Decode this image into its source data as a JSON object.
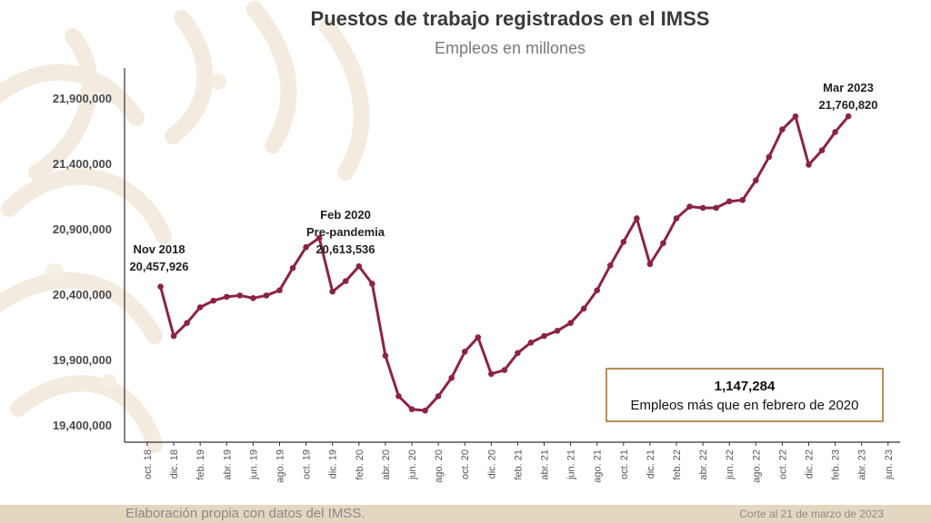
{
  "header": {
    "title": "Puestos de trabajo registrados en el IMSS",
    "subtitle": "Empleos en millones"
  },
  "callout": {
    "value": "1,147,284",
    "text": "Empleos más que en febrero de 2020"
  },
  "footer": {
    "source": "Elaboración propia con datos del IMSS.",
    "cutoff": "Corte al 21 de marzo de 2023"
  },
  "colors": {
    "line": "#8b2346",
    "axis": "#333333",
    "callout_border": "#b5915a",
    "footer_band": "#e4d7bf"
  },
  "chart_data": {
    "type": "line",
    "title": "Puestos de trabajo registrados en el IMSS",
    "subtitle": "Empleos en millones",
    "xlabel": "",
    "ylabel": "",
    "ylim": [
      19300000,
      22150000
    ],
    "grid": false,
    "y_ticks": [
      19400000,
      19900000,
      20400000,
      20900000,
      21400000,
      21900000
    ],
    "y_tick_labels": [
      "19,400,000",
      "19,900,000",
      "20,400,000",
      "20,900,000",
      "21,400,000",
      "21,900,000"
    ],
    "x_tick_labels": [
      "oct. 18",
      "dic. 18",
      "feb. 19",
      "abr. 19",
      "jun. 19",
      "ago. 19",
      "oct. 19",
      "dic. 19",
      "feb. 20",
      "abr. 20",
      "jun. 20",
      "ago. 20",
      "oct. 20",
      "dic. 20",
      "feb. 21",
      "abr. 21",
      "jun. 21",
      "ago. 21",
      "oct. 21",
      "dic. 21",
      "feb. 22",
      "abr. 22",
      "jun. 22",
      "ago. 22",
      "oct. 22",
      "dic. 22",
      "feb. 23",
      "abr. 23",
      "jun. 23"
    ],
    "categories": [
      "nov. 18",
      "dic. 18",
      "ene. 19",
      "feb. 19",
      "mar. 19",
      "abr. 19",
      "may. 19",
      "jun. 19",
      "jul. 19",
      "ago. 19",
      "sep. 19",
      "oct. 19",
      "nov. 19",
      "dic. 19",
      "ene. 20",
      "feb. 20",
      "mar. 20",
      "abr. 20",
      "may. 20",
      "jun. 20",
      "jul. 20",
      "ago. 20",
      "sep. 20",
      "oct. 20",
      "nov. 20",
      "dic. 20",
      "ene. 21",
      "feb. 21",
      "mar. 21",
      "abr. 21",
      "may. 21",
      "jun. 21",
      "jul. 21",
      "ago. 21",
      "sep. 21",
      "oct. 21",
      "nov. 21",
      "dic. 21",
      "ene. 22",
      "feb. 22",
      "mar. 22",
      "abr. 22",
      "may. 22",
      "jun. 22",
      "jul. 22",
      "ago. 22",
      "sep. 22",
      "oct. 22",
      "nov. 22",
      "dic. 22",
      "ene. 23",
      "feb. 23",
      "mar. 23"
    ],
    "values": [
      20457926,
      20080000,
      20180000,
      20300000,
      20350000,
      20380000,
      20390000,
      20370000,
      20390000,
      20430000,
      20600000,
      20760000,
      20830000,
      20420000,
      20500000,
      20613536,
      20480000,
      19930000,
      19620000,
      19520000,
      19510000,
      19620000,
      19760000,
      19960000,
      20070000,
      19790000,
      19820000,
      19950000,
      20030000,
      20080000,
      20120000,
      20180000,
      20290000,
      20430000,
      20620000,
      20800000,
      20980000,
      20630000,
      20790000,
      20980000,
      21070000,
      21060000,
      21060000,
      21110000,
      21120000,
      21270000,
      21450000,
      21660000,
      21760000,
      21390000,
      21500000,
      21640000,
      21760820
    ],
    "annotations": [
      {
        "index": 0,
        "lines": [
          "Nov 2018",
          "20,457,926"
        ]
      },
      {
        "index": 12,
        "lines": [
          "Feb 2020",
          "Pre-pandemia",
          "20,613,536"
        ]
      },
      {
        "index": 52,
        "lines": [
          "Mar 2023",
          "21,760,820"
        ]
      }
    ]
  }
}
